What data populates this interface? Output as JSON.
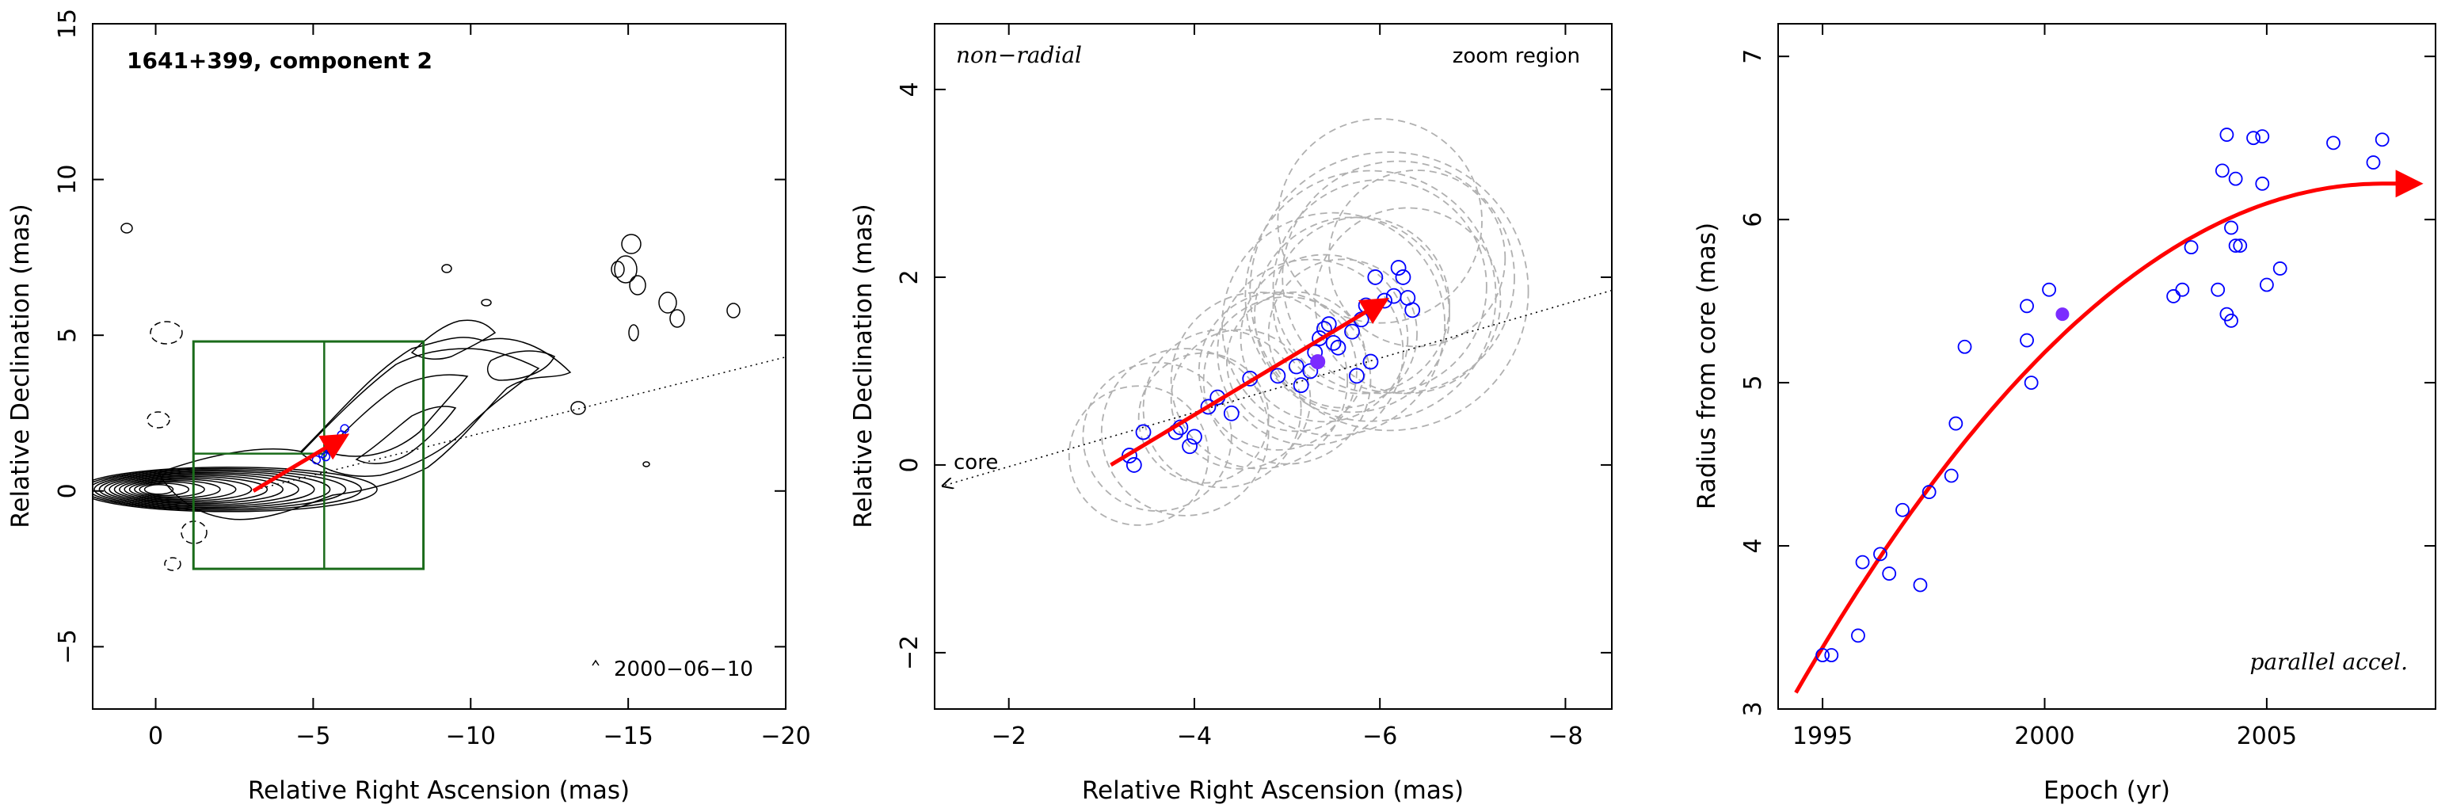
{
  "chart_data": [
    {
      "type": "contour",
      "panel": "left",
      "title": "1641+399, component 2",
      "xlabel": "Relative Right Ascension (mas)",
      "ylabel": "Relative Declination (mas)",
      "xlim": [
        2,
        -20
      ],
      "ylim": [
        -7,
        15
      ],
      "xticks": [
        0,
        -5,
        -10,
        -15,
        -20
      ],
      "yticks": [
        -5,
        0,
        5,
        10,
        15
      ],
      "xtick_labels": [
        "0",
        "−5",
        "−10",
        "−15",
        "−20"
      ],
      "ytick_labels": [
        "−5",
        "0",
        "5",
        "10",
        "15"
      ],
      "annotation": "2000−06−10",
      "zoom_box": {
        "x": [
          -1.2,
          -8.5
        ],
        "y": [
          -2.5,
          4.8
        ],
        "split_x": -5.35,
        "split_y": 1.2
      },
      "trajectory_points": [
        {
          "x": -5.1,
          "y": 1.0
        },
        {
          "x": -5.3,
          "y": 1.2
        },
        {
          "x": -5.5,
          "y": 1.4
        },
        {
          "x": -5.7,
          "y": 1.6
        },
        {
          "x": -5.9,
          "y": 1.8
        },
        {
          "x": -6.0,
          "y": 2.0
        },
        {
          "x": -5.4,
          "y": 1.1
        },
        {
          "x": -5.6,
          "y": 1.3
        }
      ],
      "arrow": {
        "from": [
          -3.1,
          0.0
        ],
        "to": [
          -6.0,
          1.75
        ]
      },
      "colors": {
        "contour": "#000000",
        "box": "#1a6b1a",
        "arrow": "#ff0000",
        "points": "#0000ff"
      }
    },
    {
      "type": "scatter",
      "panel": "middle",
      "xlabel": "Relative Right Ascension (mas)",
      "ylabel": "Relative Declination (mas)",
      "xlim": [
        -1.2,
        -8.5
      ],
      "ylim": [
        -2.6,
        4.7
      ],
      "xticks": [
        -2,
        -4,
        -6,
        -8
      ],
      "yticks": [
        -2,
        0,
        2,
        4
      ],
      "xtick_labels": [
        "−2",
        "−4",
        "−6",
        "−8"
      ],
      "ytick_labels": [
        "−2",
        "0",
        "2",
        "4"
      ],
      "label_top_left": "non−radial",
      "label_top_right": "zoom region",
      "core_label": "core",
      "points": [
        {
          "x": -3.3,
          "y": 0.1
        },
        {
          "x": -3.35,
          "y": 0.0
        },
        {
          "x": -3.45,
          "y": 0.35
        },
        {
          "x": -3.8,
          "y": 0.35
        },
        {
          "x": -3.85,
          "y": 0.4
        },
        {
          "x": -3.95,
          "y": 0.2
        },
        {
          "x": -4.0,
          "y": 0.3
        },
        {
          "x": -4.15,
          "y": 0.62
        },
        {
          "x": -4.25,
          "y": 0.72
        },
        {
          "x": -4.4,
          "y": 0.55
        },
        {
          "x": -4.6,
          "y": 0.92
        },
        {
          "x": -4.9,
          "y": 0.95
        },
        {
          "x": -5.1,
          "y": 1.05
        },
        {
          "x": -5.15,
          "y": 0.85
        },
        {
          "x": -5.25,
          "y": 1.0
        },
        {
          "x": -5.3,
          "y": 1.2
        },
        {
          "x": -5.35,
          "y": 1.35
        },
        {
          "x": -5.4,
          "y": 1.45
        },
        {
          "x": -5.45,
          "y": 1.5
        },
        {
          "x": -5.5,
          "y": 1.3
        },
        {
          "x": -5.55,
          "y": 1.25
        },
        {
          "x": -5.7,
          "y": 1.42
        },
        {
          "x": -5.75,
          "y": 0.95
        },
        {
          "x": -5.8,
          "y": 1.55
        },
        {
          "x": -5.85,
          "y": 1.7
        },
        {
          "x": -5.9,
          "y": 1.1
        },
        {
          "x": -5.95,
          "y": 2.0
        },
        {
          "x": -6.05,
          "y": 1.75
        },
        {
          "x": -6.15,
          "y": 1.8
        },
        {
          "x": -6.2,
          "y": 2.1
        },
        {
          "x": -6.25,
          "y": 2.0
        },
        {
          "x": -6.3,
          "y": 1.78
        },
        {
          "x": -6.35,
          "y": 1.65
        }
      ],
      "filled_point": {
        "x": -5.33,
        "y": 1.1
      },
      "circles": [
        {
          "x": -3.4,
          "y": 0.1,
          "r": 0.75
        },
        {
          "x": -3.6,
          "y": 0.3,
          "r": 0.8
        },
        {
          "x": -3.9,
          "y": 0.35,
          "r": 0.9
        },
        {
          "x": -4.1,
          "y": 0.5,
          "r": 0.7
        },
        {
          "x": -4.3,
          "y": 0.6,
          "r": 0.85
        },
        {
          "x": -4.5,
          "y": 0.7,
          "r": 0.75
        },
        {
          "x": -4.7,
          "y": 0.9,
          "r": 0.95
        },
        {
          "x": -4.9,
          "y": 1.0,
          "r": 0.85
        },
        {
          "x": -5.1,
          "y": 1.1,
          "r": 0.75
        },
        {
          "x": -5.25,
          "y": 1.2,
          "r": 1.0
        },
        {
          "x": -5.4,
          "y": 1.35,
          "r": 0.9
        },
        {
          "x": -5.5,
          "y": 1.5,
          "r": 1.2
        },
        {
          "x": -5.6,
          "y": 1.4,
          "r": 0.8
        },
        {
          "x": -5.7,
          "y": 1.6,
          "r": 1.05
        },
        {
          "x": -5.8,
          "y": 1.7,
          "r": 0.95
        },
        {
          "x": -5.9,
          "y": 1.8,
          "r": 1.35
        },
        {
          "x": -6.0,
          "y": 1.9,
          "r": 1.15
        },
        {
          "x": -6.1,
          "y": 1.85,
          "r": 1.5
        },
        {
          "x": -6.2,
          "y": 2.0,
          "r": 1.25
        },
        {
          "x": -6.3,
          "y": 1.75,
          "r": 1.0
        },
        {
          "x": -6.0,
          "y": 2.6,
          "r": 1.1
        },
        {
          "x": -6.4,
          "y": 2.2,
          "r": 0.95
        },
        {
          "x": -5.0,
          "y": 0.9,
          "r": 0.9
        }
      ],
      "arrow": {
        "from": [
          -3.1,
          0.0
        ],
        "to": [
          -6.05,
          1.75
        ]
      },
      "axis_line": {
        "from": [
          -8.5,
          1.86
        ],
        "to": [
          -1.3,
          -0.22
        ]
      },
      "colors": {
        "points": "#0000ff",
        "filled": "#7b2cff",
        "circles": "#b0b0b0",
        "arrow": "#ff0000"
      }
    },
    {
      "type": "scatter",
      "panel": "right",
      "xlabel": "Epoch (yr)",
      "ylabel": "Radius from core (mas)",
      "xlim": [
        1994,
        2008.8
      ],
      "ylim": [
        3,
        7.2
      ],
      "xticks": [
        1995,
        2000,
        2005
      ],
      "yticks": [
        3,
        4,
        5,
        6,
        7
      ],
      "xtick_labels": [
        "1995",
        "2000",
        "2005"
      ],
      "ytick_labels": [
        "3",
        "4",
        "5",
        "6",
        "7"
      ],
      "label_bottom_right": "parallel accel.",
      "points": [
        {
          "x": 1995.0,
          "y": 3.33
        },
        {
          "x": 1995.2,
          "y": 3.33
        },
        {
          "x": 1995.8,
          "y": 3.45
        },
        {
          "x": 1995.9,
          "y": 3.9
        },
        {
          "x": 1996.3,
          "y": 3.95
        },
        {
          "x": 1996.5,
          "y": 3.83
        },
        {
          "x": 1996.8,
          "y": 4.22
        },
        {
          "x": 1997.2,
          "y": 3.76
        },
        {
          "x": 1997.4,
          "y": 4.33
        },
        {
          "x": 1997.9,
          "y": 4.43
        },
        {
          "x": 1998.0,
          "y": 4.75
        },
        {
          "x": 1998.2,
          "y": 5.22
        },
        {
          "x": 1999.6,
          "y": 5.26
        },
        {
          "x": 1999.6,
          "y": 5.47
        },
        {
          "x": 1999.7,
          "y": 5.0
        },
        {
          "x": 2000.1,
          "y": 5.57
        },
        {
          "x": 2002.9,
          "y": 5.53
        },
        {
          "x": 2003.1,
          "y": 5.57
        },
        {
          "x": 2003.3,
          "y": 5.83
        },
        {
          "x": 2003.9,
          "y": 5.57
        },
        {
          "x": 2004.0,
          "y": 6.3
        },
        {
          "x": 2004.1,
          "y": 6.52
        },
        {
          "x": 2004.1,
          "y": 5.42
        },
        {
          "x": 2004.2,
          "y": 5.95
        },
        {
          "x": 2004.2,
          "y": 5.38
        },
        {
          "x": 2004.3,
          "y": 6.25
        },
        {
          "x": 2004.4,
          "y": 5.84
        },
        {
          "x": 2004.3,
          "y": 5.84
        },
        {
          "x": 2004.7,
          "y": 6.5
        },
        {
          "x": 2004.9,
          "y": 6.51
        },
        {
          "x": 2004.9,
          "y": 6.22
        },
        {
          "x": 2005.0,
          "y": 5.6
        },
        {
          "x": 2005.3,
          "y": 5.7
        },
        {
          "x": 2006.5,
          "y": 6.47
        },
        {
          "x": 2007.4,
          "y": 6.35
        },
        {
          "x": 2007.6,
          "y": 6.49
        }
      ],
      "filled_point": {
        "x": 2000.4,
        "y": 5.42
      },
      "fit_curve": {
        "x0": 1994.4,
        "x_end": 2008.4,
        "a": -0.0227,
        "b": 0.0603,
        "c": 5.97,
        "t0": 2001.5
      },
      "colors": {
        "points": "#0000ff",
        "filled": "#7b2cff",
        "curve": "#ff0000"
      }
    }
  ]
}
